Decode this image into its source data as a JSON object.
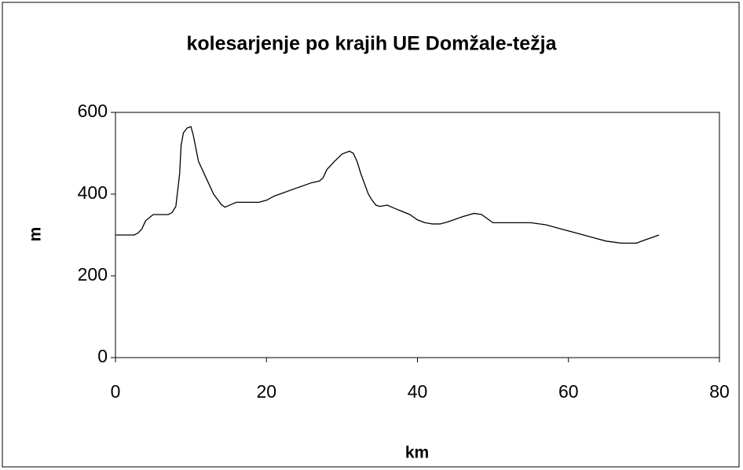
{
  "chart_data": {
    "type": "line",
    "title": "kolesarjenje po krajih UE Domžale-težja",
    "x_label": "km",
    "y_label": "m",
    "x": [
      0,
      2.5,
      3,
      3.5,
      4,
      5,
      7,
      7.5,
      8,
      8.5,
      8.7,
      9,
      9.5,
      10,
      10.3,
      11,
      12,
      13,
      14,
      14.5,
      15,
      16,
      19,
      20,
      21,
      24,
      26,
      27,
      27.5,
      28,
      29,
      30,
      31,
      31.5,
      32,
      32.5,
      33,
      33.5,
      34,
      34.5,
      35,
      36,
      37,
      39,
      40,
      41,
      42,
      43,
      44,
      46,
      47.5,
      48.5,
      50,
      55,
      57,
      59,
      61,
      63,
      65,
      67,
      69,
      70,
      72
    ],
    "series": [
      {
        "name": "m",
        "color": "#000000",
        "values": [
          300,
          300,
          305,
          315,
          335,
          350,
          350,
          355,
          370,
          450,
          520,
          550,
          562,
          565,
          545,
          480,
          440,
          400,
          375,
          368,
          372,
          380,
          380,
          385,
          395,
          415,
          428,
          432,
          440,
          460,
          480,
          498,
          505,
          500,
          480,
          450,
          425,
          400,
          385,
          373,
          370,
          373,
          365,
          350,
          337,
          330,
          327,
          327,
          332,
          345,
          353,
          350,
          330,
          330,
          325,
          315,
          305,
          295,
          285,
          280,
          280,
          287,
          300
        ]
      }
    ],
    "xlim": [
      0,
      80
    ],
    "xticks": [
      0,
      20,
      40,
      60,
      80
    ],
    "ylim": [
      0,
      600
    ],
    "yticks": [
      0,
      200,
      400,
      600
    ]
  }
}
